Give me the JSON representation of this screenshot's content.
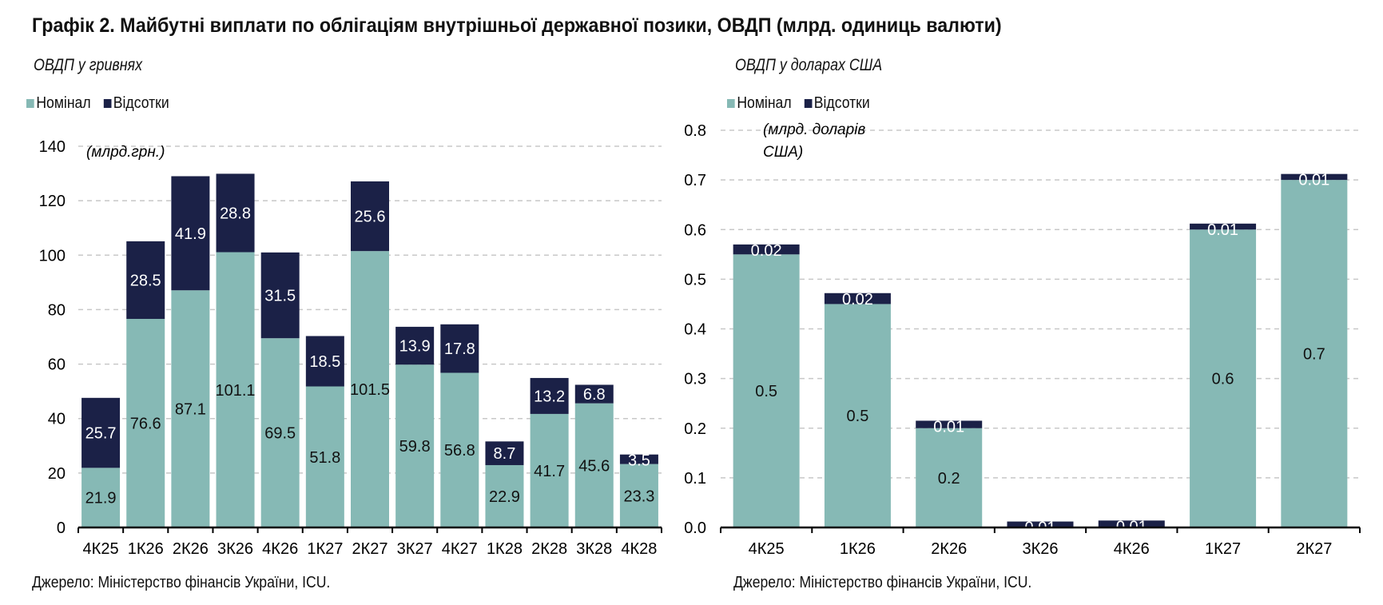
{
  "title": "Графік 2. Майбутні виплати по облігаціям внутрішньої державної позики, ОВДП (млрд. одиниць валюти)",
  "colors": {
    "nominal": "#86b9b5",
    "interest": "#1b2147"
  },
  "chart_data": [
    {
      "type": "bar",
      "stacked": true,
      "title": "ОВДП у гривнях",
      "unit_label": "(млрд.грн.)",
      "legend": [
        "Номінал",
        "Відсотки"
      ],
      "legend_position": "top-left",
      "categories": [
        "4К25",
        "1К26",
        "2К26",
        "3К26",
        "4К26",
        "1К27",
        "2К27",
        "3К27",
        "4К27",
        "1К28",
        "2К28",
        "3К28",
        "4К28"
      ],
      "series": [
        {
          "name": "Номінал",
          "values": [
            21.9,
            76.6,
            87.1,
            101.1,
            69.5,
            51.8,
            101.5,
            59.8,
            56.8,
            22.9,
            41.7,
            45.6,
            23.3
          ],
          "labels": [
            "21.9",
            "76.6",
            "87.1",
            "101.1",
            "69.5",
            "51.8",
            "101.5",
            "59.8",
            "56.8",
            "22.9",
            "41.7",
            "45.6",
            "23.3"
          ]
        },
        {
          "name": "Відсотки",
          "values": [
            25.7,
            28.5,
            41.9,
            28.8,
            31.5,
            18.5,
            25.6,
            13.9,
            17.8,
            8.7,
            13.2,
            6.8,
            3.5
          ],
          "labels": [
            "25.7",
            "28.5",
            "41.9",
            "28.8",
            "31.5",
            "18.5",
            "25.6",
            "13.9",
            "17.8",
            "8.7",
            "13.2",
            "6.8",
            "3.5"
          ]
        }
      ],
      "ylim": [
        0,
        140
      ],
      "yticks": [
        "0",
        "20",
        "40",
        "60",
        "80",
        "100",
        "120",
        "140"
      ],
      "grid": true,
      "source": "Джерело: Міністерство фінансів України, ICU."
    },
    {
      "type": "bar",
      "stacked": true,
      "title": "ОВДП у доларах США",
      "unit_label": "(млрд. доларів США)",
      "legend": [
        "Номінал",
        "Відсотки"
      ],
      "legend_position": "top-left",
      "categories": [
        "4К25",
        "1К26",
        "2К26",
        "3К26",
        "4К26",
        "1К27",
        "2К27"
      ],
      "series": [
        {
          "name": "Номінал",
          "values": [
            0.55,
            0.45,
            0.2,
            0,
            0,
            0.6,
            0.7
          ],
          "labels": [
            "0.5",
            "0.5",
            "0.2",
            "",
            "",
            "0.6",
            "0.7"
          ]
        },
        {
          "name": "Відсотки",
          "values": [
            0.02,
            0.022,
            0.015,
            0.012,
            0.014,
            0.012,
            0.012
          ],
          "labels": [
            "0.02",
            "0.02",
            "0.01",
            "0.01",
            "0.01",
            "0.01",
            "0.01"
          ]
        }
      ],
      "ylim": [
        0,
        0.8
      ],
      "yticks": [
        "0.0",
        "0.1",
        "0.2",
        "0.3",
        "0.4",
        "0.5",
        "0.6",
        "0.7",
        "0.8"
      ],
      "grid": true,
      "source": "Джерело: Міністерство фінансів України, ICU."
    }
  ]
}
